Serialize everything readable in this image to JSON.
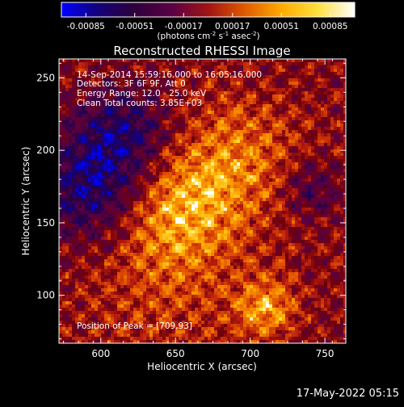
{
  "chart_data": {
    "type": "heatmap",
    "title": "Reconstructed RHESSI Image",
    "xlabel": "Heliocentric X (arcsec)",
    "ylabel": "Heliocentric Y (arcsec)",
    "xlim": [
      572,
      764
    ],
    "ylim": [
      67,
      263
    ],
    "xticks": [
      600,
      650,
      700,
      750
    ],
    "yticks": [
      100,
      150,
      200,
      250
    ],
    "colorbar": {
      "ticks": [
        "-0.00085",
        "-0.00051",
        "-0.00017",
        "0.00017",
        "0.00051",
        "0.00085"
      ],
      "unit_text": "(photons cm",
      "unit_sup1": "-2",
      "unit_mid1": " s",
      "unit_sup2": "-1",
      "unit_mid2": " asec",
      "unit_sup3": "-2",
      "unit_end": ")",
      "range": [
        -0.00085,
        0.00085
      ],
      "colormap": [
        "#0000ff",
        "#140078",
        "#2e003c",
        "#5a0046",
        "#a01414",
        "#e05a00",
        "#ffaa00",
        "#ffe040",
        "#ffffff"
      ]
    },
    "info_lines": [
      "14-Sep-2014 15:59:16.000 to 16:05:16.000",
      "Detectors: 3F 6F 9F, Att 0",
      "Energy Range: 12.0 - 25.0 keV",
      "Clean     Total counts: 3.85E+03"
    ],
    "peak_label": "Position of Peak = [709,93]",
    "peak": [
      709,
      93
    ]
  },
  "footer_timestamp": "17-May-2022 05:15"
}
